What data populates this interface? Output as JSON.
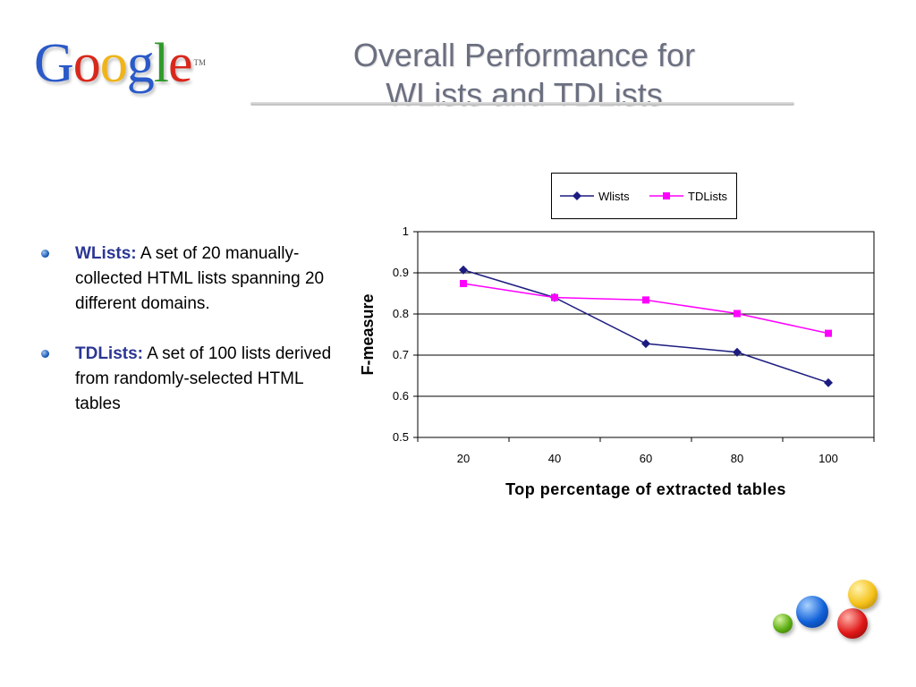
{
  "logo": {
    "letters": [
      {
        "ch": "G",
        "color": "#2a59c9"
      },
      {
        "ch": "o",
        "color": "#d8281c"
      },
      {
        "ch": "o",
        "color": "#f0b418"
      },
      {
        "ch": "g",
        "color": "#2a59c9"
      },
      {
        "ch": "l",
        "color": "#2f9a2a"
      },
      {
        "ch": "e",
        "color": "#d8281c"
      }
    ],
    "tm": "TM"
  },
  "slide": {
    "title_line1": "Overall Performance for",
    "title_line2": "WLists and TDLists"
  },
  "bullets": [
    {
      "term": "WLists:",
      "text": " A set of 20 manually-collected HTML lists spanning 20 different domains."
    },
    {
      "term": "TDLists:",
      "text": " A set of 100 lists derived from randomly-selected HTML tables"
    }
  ],
  "chart_data": {
    "type": "line",
    "title": "",
    "xlabel": "Top percentage of extracted tables",
    "ylabel": "F-measure",
    "categories": [
      "20",
      "40",
      "60",
      "80",
      "100"
    ],
    "ylim": [
      0.5,
      1
    ],
    "yticks": [
      "0.5",
      "0.6",
      "0.7",
      "0.8",
      "0.9",
      "1"
    ],
    "grid": true,
    "legend_position": "top",
    "series": [
      {
        "name": "Wlists",
        "color": "#1c1c80",
        "marker": "diamond",
        "values": [
          0.907,
          0.84,
          0.728,
          0.707,
          0.633
        ]
      },
      {
        "name": "TDLists",
        "color": "#ff00ff",
        "marker": "square",
        "values": [
          0.874,
          0.84,
          0.834,
          0.801,
          0.753
        ]
      }
    ]
  }
}
